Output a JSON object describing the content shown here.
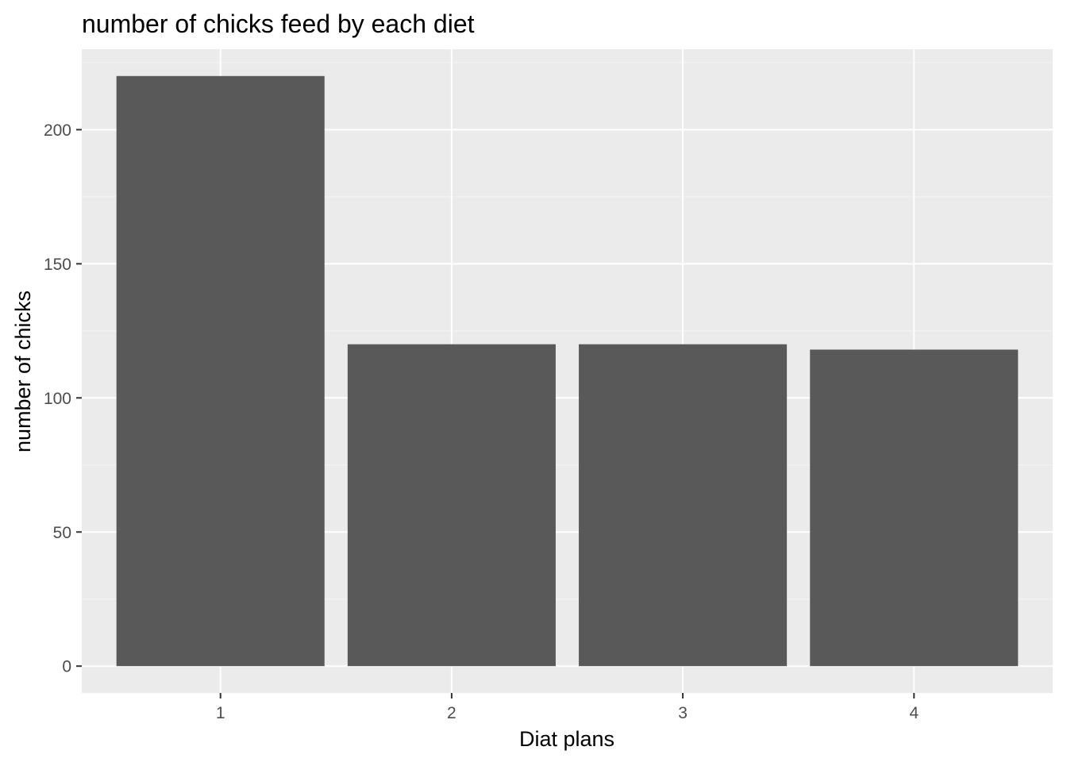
{
  "colors": {
    "panel_background": "#ebebeb",
    "grid_major": "#ffffff",
    "grid_minor": "#f5f5f5",
    "bar_fill": "#595959",
    "tick_text": "#4d4d4d",
    "tick_mark": "#333333"
  },
  "chart_data": {
    "type": "bar",
    "title": "number of chicks feed by each diet",
    "xlabel": "Diat plans",
    "ylabel": "number of chicks",
    "categories": [
      "1",
      "2",
      "3",
      "4"
    ],
    "values": [
      220,
      120,
      120,
      118
    ],
    "ylim": [
      -10,
      230
    ],
    "y_ticks": [
      0,
      50,
      100,
      150,
      200
    ],
    "y_tick_labels": [
      "0",
      "50",
      "100",
      "150",
      "200"
    ],
    "grid": true,
    "legend": "none"
  }
}
